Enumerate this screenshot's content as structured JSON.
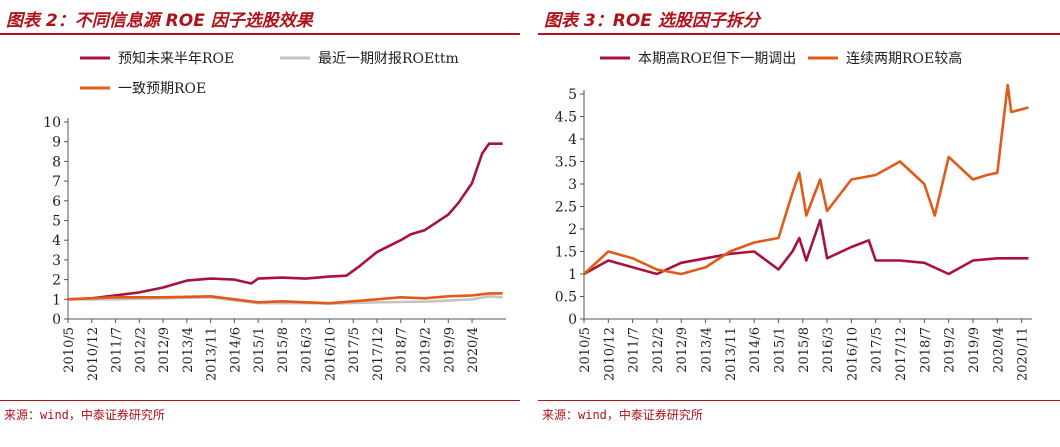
{
  "charts": [
    {
      "id": "left",
      "title": "图表 2：不同信息源 ROE 因子选股效果",
      "source": "来源：wind，中泰证券研究所",
      "chart_data": {
        "type": "line",
        "ylim": [
          0,
          10
        ],
        "yticks": [
          0,
          1,
          2,
          3,
          4,
          5,
          6,
          7,
          8,
          9,
          10
        ],
        "xlim": [
          "2010/5",
          "2021/2"
        ],
        "xticks": [
          "2010/5",
          "2010/12",
          "2011/7",
          "2012/2",
          "2012/9",
          "2013/4",
          "2013/11",
          "2014/6",
          "2015/1",
          "2015/8",
          "2016/3",
          "2016/10",
          "2017/5",
          "2017/12",
          "2018/7",
          "2019/2",
          "2019/9",
          "2020/4"
        ],
        "legend_position": "top",
        "series": [
          {
            "name": "预知未来半年ROE",
            "color": "#a8133e",
            "points": [
              [
                "2010/5",
                1.0
              ],
              [
                "2010/12",
                1.05
              ],
              [
                "2011/7",
                1.2
              ],
              [
                "2012/2",
                1.35
              ],
              [
                "2012/9",
                1.6
              ],
              [
                "2013/4",
                1.95
              ],
              [
                "2013/11",
                2.05
              ],
              [
                "2014/6",
                2.0
              ],
              [
                "2014/11",
                1.8
              ],
              [
                "2015/1",
                2.05
              ],
              [
                "2015/8",
                2.1
              ],
              [
                "2016/3",
                2.05
              ],
              [
                "2016/10",
                2.15
              ],
              [
                "2017/3",
                2.2
              ],
              [
                "2017/7",
                2.7
              ],
              [
                "2017/12",
                3.4
              ],
              [
                "2018/7",
                4.0
              ],
              [
                "2018/10",
                4.3
              ],
              [
                "2019/2",
                4.5
              ],
              [
                "2019/9",
                5.3
              ],
              [
                "2019/12",
                5.9
              ],
              [
                "2020/4",
                6.9
              ],
              [
                "2020/7",
                8.4
              ],
              [
                "2020/9",
                8.9
              ],
              [
                "2021/1",
                8.9
              ]
            ]
          },
          {
            "name": "最近一期财报ROEttm",
            "color": "#c4c4c4",
            "points": [
              [
                "2010/5",
                1.0
              ],
              [
                "2011/7",
                1.0
              ],
              [
                "2012/9",
                1.05
              ],
              [
                "2013/11",
                1.1
              ],
              [
                "2015/1",
                0.8
              ],
              [
                "2016/3",
                0.8
              ],
              [
                "2016/10",
                0.78
              ],
              [
                "2017/12",
                0.85
              ],
              [
                "2019/2",
                0.88
              ],
              [
                "2020/4",
                1.0
              ],
              [
                "2020/9",
                1.15
              ],
              [
                "2021/1",
                1.1
              ]
            ]
          },
          {
            "name": "一致预期ROE",
            "color": "#e05a1a",
            "points": [
              [
                "2010/5",
                1.0
              ],
              [
                "2011/7",
                1.1
              ],
              [
                "2012/9",
                1.1
              ],
              [
                "2013/11",
                1.15
              ],
              [
                "2014/6",
                1.0
              ],
              [
                "2015/1",
                0.85
              ],
              [
                "2015/8",
                0.9
              ],
              [
                "2016/3",
                0.85
              ],
              [
                "2016/10",
                0.8
              ],
              [
                "2017/5",
                0.9
              ],
              [
                "2017/12",
                1.0
              ],
              [
                "2018/7",
                1.1
              ],
              [
                "2019/2",
                1.05
              ],
              [
                "2019/9",
                1.15
              ],
              [
                "2020/4",
                1.2
              ],
              [
                "2020/9",
                1.3
              ],
              [
                "2021/1",
                1.3
              ]
            ]
          }
        ]
      }
    },
    {
      "id": "right",
      "title": "图表 3：ROE 选股因子拆分",
      "source": "来源：wind，中泰证券研究所",
      "chart_data": {
        "type": "line",
        "ylim": [
          0,
          5
        ],
        "yticks": [
          0,
          0.5,
          1,
          1.5,
          2,
          2.5,
          3,
          3.5,
          4,
          4.5,
          5
        ],
        "xlim": [
          "2010/5",
          "2021/2"
        ],
        "xticks": [
          "2010/5",
          "2010/12",
          "2011/7",
          "2012/2",
          "2012/9",
          "2013/4",
          "2013/11",
          "2014/6",
          "2015/1",
          "2015/8",
          "2016/3",
          "2016/10",
          "2017/5",
          "2017/12",
          "2018/7",
          "2019/2",
          "2019/9",
          "2020/4",
          "2020/11"
        ],
        "legend_position": "top",
        "series": [
          {
            "name": "本期高ROE但下一期调出",
            "color": "#a8133e",
            "points": [
              [
                "2010/5",
                1.0
              ],
              [
                "2010/12",
                1.3
              ],
              [
                "2011/7",
                1.15
              ],
              [
                "2012/2",
                1.0
              ],
              [
                "2012/9",
                1.25
              ],
              [
                "2013/4",
                1.35
              ],
              [
                "2013/11",
                1.45
              ],
              [
                "2014/6",
                1.5
              ],
              [
                "2015/1",
                1.1
              ],
              [
                "2015/5",
                1.5
              ],
              [
                "2015/7",
                1.8
              ],
              [
                "2015/9",
                1.3
              ],
              [
                "2016/1",
                2.2
              ],
              [
                "2016/3",
                1.35
              ],
              [
                "2016/10",
                1.6
              ],
              [
                "2017/3",
                1.75
              ],
              [
                "2017/5",
                1.3
              ],
              [
                "2017/12",
                1.3
              ],
              [
                "2018/7",
                1.25
              ],
              [
                "2019/2",
                1.0
              ],
              [
                "2019/9",
                1.3
              ],
              [
                "2020/4",
                1.35
              ],
              [
                "2020/11",
                1.35
              ],
              [
                "2021/1",
                1.35
              ]
            ]
          },
          {
            "name": "连续两期ROE较高",
            "color": "#e05a1a",
            "points": [
              [
                "2010/5",
                1.0
              ],
              [
                "2010/12",
                1.5
              ],
              [
                "2011/7",
                1.35
              ],
              [
                "2012/2",
                1.1
              ],
              [
                "2012/9",
                1.0
              ],
              [
                "2013/4",
                1.15
              ],
              [
                "2013/11",
                1.5
              ],
              [
                "2014/6",
                1.7
              ],
              [
                "2015/1",
                1.8
              ],
              [
                "2015/5",
                2.8
              ],
              [
                "2015/7",
                3.25
              ],
              [
                "2015/9",
                2.3
              ],
              [
                "2016/1",
                3.1
              ],
              [
                "2016/3",
                2.4
              ],
              [
                "2016/10",
                3.1
              ],
              [
                "2017/5",
                3.2
              ],
              [
                "2017/12",
                3.5
              ],
              [
                "2018/7",
                3.0
              ],
              [
                "2018/10",
                2.3
              ],
              [
                "2019/2",
                3.6
              ],
              [
                "2019/9",
                3.1
              ],
              [
                "2020/1",
                3.2
              ],
              [
                "2020/4",
                3.25
              ],
              [
                "2020/7",
                5.2
              ],
              [
                "2020/8",
                4.6
              ],
              [
                "2021/1",
                4.7
              ]
            ]
          }
        ]
      }
    }
  ]
}
